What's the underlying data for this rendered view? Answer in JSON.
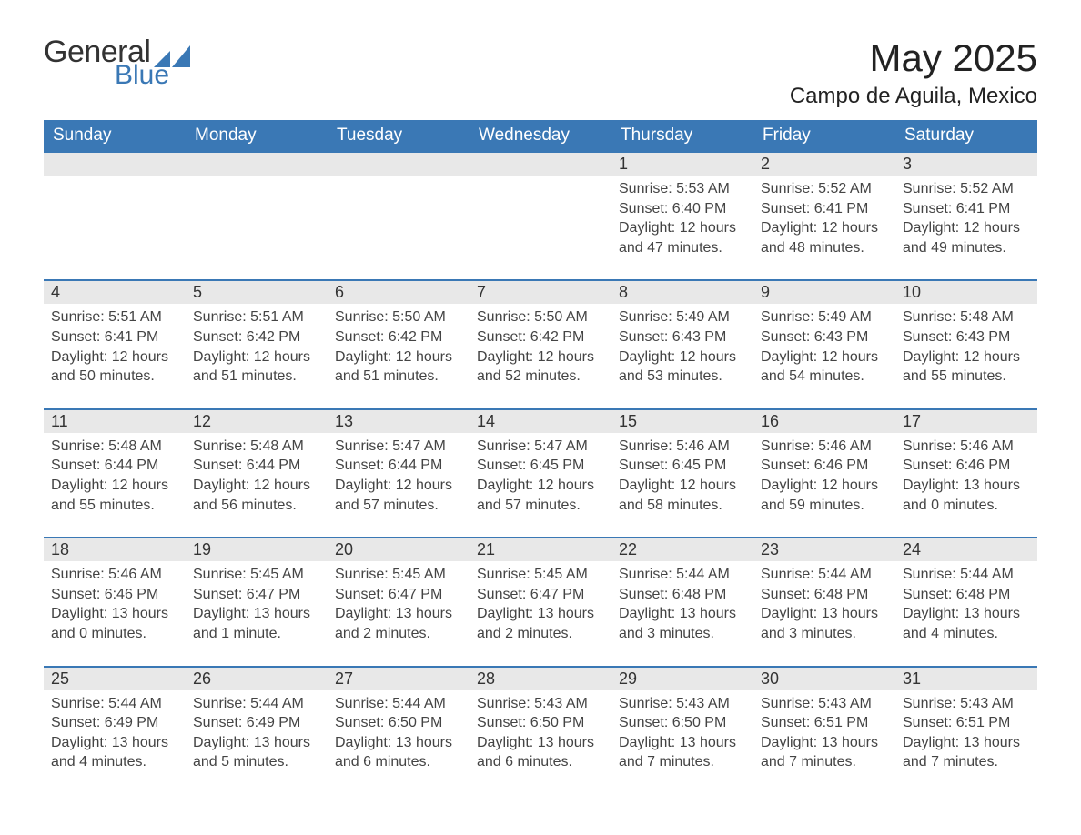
{
  "logo": {
    "word1": "General",
    "word2": "Blue"
  },
  "title": "May 2025",
  "location": "Campo de Aguila, Mexico",
  "colors": {
    "blue": "#3a78b5",
    "header_text": "#ffffff",
    "grey_bg": "#e8e8e8",
    "border": "#3a78b5",
    "text": "#222222"
  },
  "weekdays": [
    "Sunday",
    "Monday",
    "Tuesday",
    "Wednesday",
    "Thursday",
    "Friday",
    "Saturday"
  ],
  "first_weekday_index": 4,
  "days": [
    {
      "n": 1,
      "sunrise": "5:53 AM",
      "sunset": "6:40 PM",
      "daylight": "12 hours and 47 minutes."
    },
    {
      "n": 2,
      "sunrise": "5:52 AM",
      "sunset": "6:41 PM",
      "daylight": "12 hours and 48 minutes."
    },
    {
      "n": 3,
      "sunrise": "5:52 AM",
      "sunset": "6:41 PM",
      "daylight": "12 hours and 49 minutes."
    },
    {
      "n": 4,
      "sunrise": "5:51 AM",
      "sunset": "6:41 PM",
      "daylight": "12 hours and 50 minutes."
    },
    {
      "n": 5,
      "sunrise": "5:51 AM",
      "sunset": "6:42 PM",
      "daylight": "12 hours and 51 minutes."
    },
    {
      "n": 6,
      "sunrise": "5:50 AM",
      "sunset": "6:42 PM",
      "daylight": "12 hours and 51 minutes."
    },
    {
      "n": 7,
      "sunrise": "5:50 AM",
      "sunset": "6:42 PM",
      "daylight": "12 hours and 52 minutes."
    },
    {
      "n": 8,
      "sunrise": "5:49 AM",
      "sunset": "6:43 PM",
      "daylight": "12 hours and 53 minutes."
    },
    {
      "n": 9,
      "sunrise": "5:49 AM",
      "sunset": "6:43 PM",
      "daylight": "12 hours and 54 minutes."
    },
    {
      "n": 10,
      "sunrise": "5:48 AM",
      "sunset": "6:43 PM",
      "daylight": "12 hours and 55 minutes."
    },
    {
      "n": 11,
      "sunrise": "5:48 AM",
      "sunset": "6:44 PM",
      "daylight": "12 hours and 55 minutes."
    },
    {
      "n": 12,
      "sunrise": "5:48 AM",
      "sunset": "6:44 PM",
      "daylight": "12 hours and 56 minutes."
    },
    {
      "n": 13,
      "sunrise": "5:47 AM",
      "sunset": "6:44 PM",
      "daylight": "12 hours and 57 minutes."
    },
    {
      "n": 14,
      "sunrise": "5:47 AM",
      "sunset": "6:45 PM",
      "daylight": "12 hours and 57 minutes."
    },
    {
      "n": 15,
      "sunrise": "5:46 AM",
      "sunset": "6:45 PM",
      "daylight": "12 hours and 58 minutes."
    },
    {
      "n": 16,
      "sunrise": "5:46 AM",
      "sunset": "6:46 PM",
      "daylight": "12 hours and 59 minutes."
    },
    {
      "n": 17,
      "sunrise": "5:46 AM",
      "sunset": "6:46 PM",
      "daylight": "13 hours and 0 minutes."
    },
    {
      "n": 18,
      "sunrise": "5:46 AM",
      "sunset": "6:46 PM",
      "daylight": "13 hours and 0 minutes."
    },
    {
      "n": 19,
      "sunrise": "5:45 AM",
      "sunset": "6:47 PM",
      "daylight": "13 hours and 1 minute."
    },
    {
      "n": 20,
      "sunrise": "5:45 AM",
      "sunset": "6:47 PM",
      "daylight": "13 hours and 2 minutes."
    },
    {
      "n": 21,
      "sunrise": "5:45 AM",
      "sunset": "6:47 PM",
      "daylight": "13 hours and 2 minutes."
    },
    {
      "n": 22,
      "sunrise": "5:44 AM",
      "sunset": "6:48 PM",
      "daylight": "13 hours and 3 minutes."
    },
    {
      "n": 23,
      "sunrise": "5:44 AM",
      "sunset": "6:48 PM",
      "daylight": "13 hours and 3 minutes."
    },
    {
      "n": 24,
      "sunrise": "5:44 AM",
      "sunset": "6:48 PM",
      "daylight": "13 hours and 4 minutes."
    },
    {
      "n": 25,
      "sunrise": "5:44 AM",
      "sunset": "6:49 PM",
      "daylight": "13 hours and 4 minutes."
    },
    {
      "n": 26,
      "sunrise": "5:44 AM",
      "sunset": "6:49 PM",
      "daylight": "13 hours and 5 minutes."
    },
    {
      "n": 27,
      "sunrise": "5:44 AM",
      "sunset": "6:50 PM",
      "daylight": "13 hours and 6 minutes."
    },
    {
      "n": 28,
      "sunrise": "5:43 AM",
      "sunset": "6:50 PM",
      "daylight": "13 hours and 6 minutes."
    },
    {
      "n": 29,
      "sunrise": "5:43 AM",
      "sunset": "6:50 PM",
      "daylight": "13 hours and 7 minutes."
    },
    {
      "n": 30,
      "sunrise": "5:43 AM",
      "sunset": "6:51 PM",
      "daylight": "13 hours and 7 minutes."
    },
    {
      "n": 31,
      "sunrise": "5:43 AM",
      "sunset": "6:51 PM",
      "daylight": "13 hours and 7 minutes."
    }
  ],
  "labels": {
    "sunrise": "Sunrise: ",
    "sunset": "Sunset: ",
    "daylight": "Daylight: "
  }
}
